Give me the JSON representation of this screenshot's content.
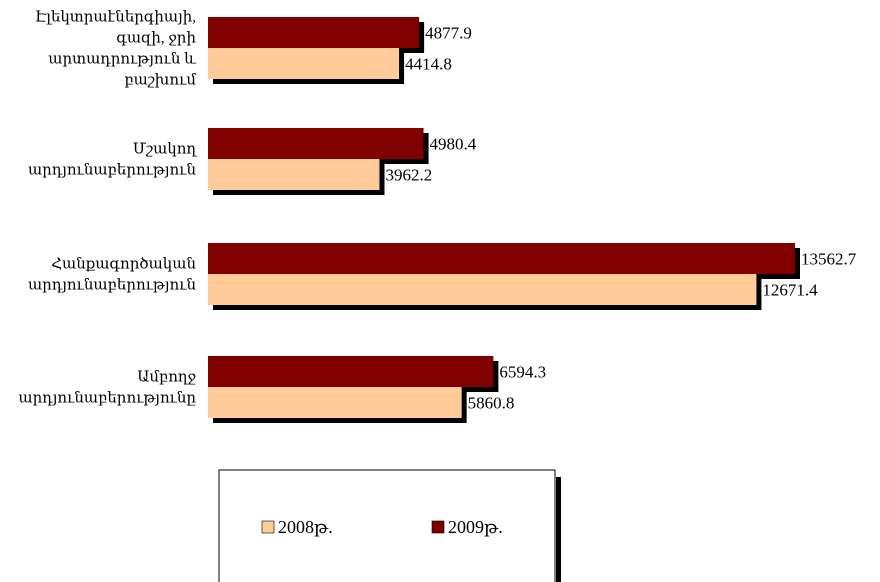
{
  "chart_data": {
    "type": "bar",
    "orientation": "horizontal",
    "categories": [
      [
        "Էլեկտրաէներգիայի,",
        "գազի, ջրի",
        "արտադրություն և",
        "բաշխում"
      ],
      [
        "Մշակող",
        "արդյունաբերություն"
      ],
      [
        "Հանքագործական",
        "արդյունաբերություն"
      ],
      [
        "Ամբողջ",
        "արդյունաբերությունը"
      ]
    ],
    "series": [
      {
        "name": "2008թ.",
        "color": "#FFCC99",
        "values": [
          4414.8,
          3962.2,
          12671.4,
          5860.8
        ],
        "labels": [
          "4414.8",
          "3962.2",
          "12671.4",
          "5860.8"
        ]
      },
      {
        "name": "2009թ.",
        "color": "#800000",
        "values": [
          4877.9,
          4980.4,
          13562.7,
          6594.3
        ],
        "labels": [
          "4877.9",
          "4980.4",
          "13562.7",
          "6594.3"
        ]
      }
    ],
    "xlim": [
      0,
      13562.7
    ],
    "grid": false,
    "legend_position": "bottom"
  }
}
